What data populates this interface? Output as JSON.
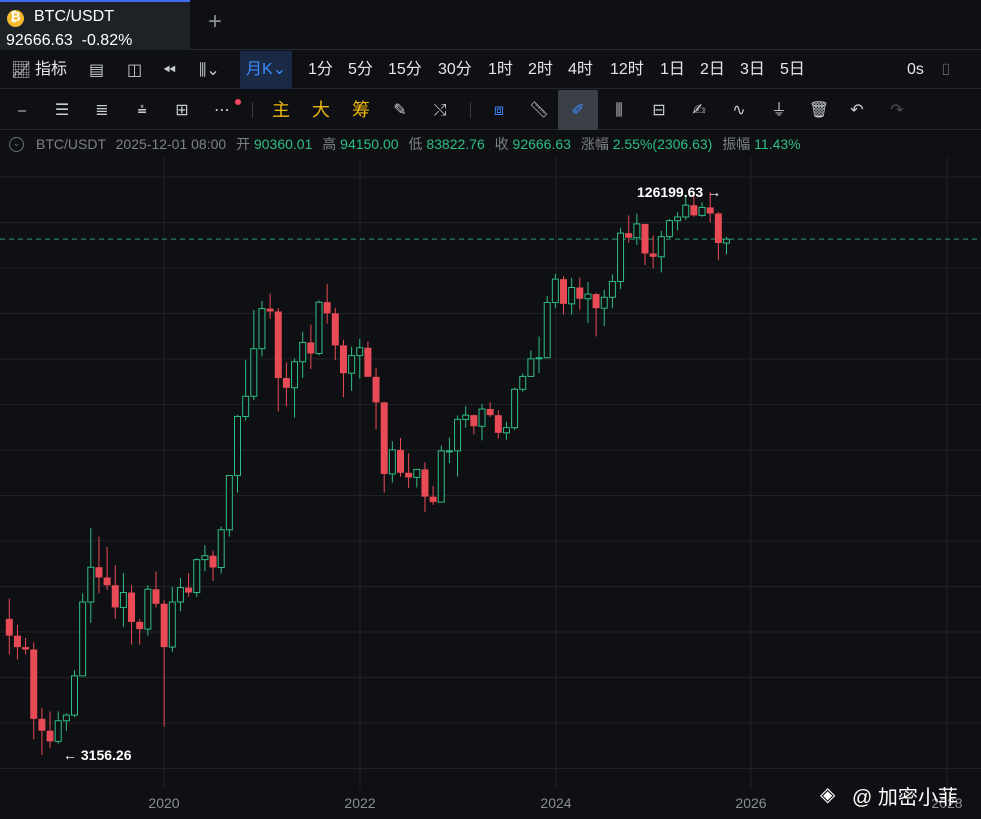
{
  "tab": {
    "symbol": "BTC/USDT",
    "price_line": "92666.63  -0.82%",
    "add_icon": "plus-icon"
  },
  "toolbar1": {
    "indicators_label": "指标",
    "period_selected": "月K",
    "periods": [
      "1分",
      "5分",
      "15分",
      "30分",
      "1时",
      "2时",
      "4时",
      "12时",
      "1日",
      "2日",
      "3日",
      "5日"
    ],
    "countdown": "0s"
  },
  "toolbar2": {
    "indicator_main": "主",
    "indicator_big": "大",
    "indicator_chip": "筹"
  },
  "info": {
    "symbol": "BTC/USDT",
    "datetime": "2025-12-01 08:00",
    "open_label": "开",
    "open": "90360.01",
    "high_label": "高",
    "high": "94150.00",
    "low_label": "低",
    "low": "83822.76",
    "close_label": "收",
    "close": "92666.63",
    "change_label": "涨幅",
    "change": "2.55%(2306.63)",
    "amplitude_label": "振幅",
    "amplitude": "11.43%"
  },
  "watermark": "@ 加密小菲",
  "colors": {
    "up": "#2ebd85",
    "down": "#e84b55",
    "accent": "#3e8bff",
    "background": "#0f1013",
    "grid": "#1f2227"
  },
  "chart_data": {
    "type": "candlestick",
    "title": "BTC/USDT",
    "interval": "monthly",
    "scale": "log",
    "x_ticks": [
      "2020",
      "2022",
      "2024",
      "2026",
      "2028"
    ],
    "annotations": [
      {
        "text": "126199.63 →",
        "at": "high"
      },
      {
        "text": "← 3156.26",
        "at": "low"
      }
    ],
    "current_price": 92666.63,
    "ohlc": [
      [
        7700,
        8800,
        6100,
        6900
      ],
      [
        6900,
        7400,
        5900,
        6400
      ],
      [
        6400,
        6800,
        6100,
        6300
      ],
      [
        6300,
        6600,
        3500,
        4000
      ],
      [
        4000,
        4300,
        3156,
        3700
      ],
      [
        3700,
        4200,
        3300,
        3450
      ],
      [
        3450,
        4200,
        3400,
        3950
      ],
      [
        3950,
        4150,
        3700,
        4100
      ],
      [
        4100,
        5500,
        4050,
        5300
      ],
      [
        5300,
        9100,
        5300,
        8600
      ],
      [
        8600,
        13970,
        7500,
        10800
      ],
      [
        10800,
        13200,
        9100,
        10100
      ],
      [
        10100,
        12330,
        9300,
        9600
      ],
      [
        9600,
        10950,
        7700,
        8300
      ],
      [
        8300,
        10400,
        7300,
        9150
      ],
      [
        9150,
        9600,
        6500,
        7550
      ],
      [
        7550,
        7700,
        6500,
        7200
      ],
      [
        7200,
        9600,
        6900,
        9350
      ],
      [
        9350,
        10500,
        8300,
        8500
      ],
      [
        8500,
        8700,
        3800,
        6400
      ],
      [
        6400,
        9500,
        6200,
        8600
      ],
      [
        8600,
        10070,
        8100,
        9450
      ],
      [
        9450,
        10400,
        8900,
        9150
      ],
      [
        9150,
        11450,
        8900,
        11350
      ],
      [
        11350,
        12480,
        10520,
        11650
      ],
      [
        11650,
        12050,
        9880,
        10780
      ],
      [
        10780,
        14100,
        10370,
        13800
      ],
      [
        13800,
        19480,
        13200,
        19700
      ],
      [
        19700,
        29300,
        17600,
        29000
      ],
      [
        29000,
        41900,
        28200,
        33100
      ],
      [
        33100,
        58300,
        32300,
        45200
      ],
      [
        45200,
        61800,
        43000,
        58800
      ],
      [
        58800,
        64850,
        55000,
        57700
      ],
      [
        57700,
        59000,
        30000,
        37300
      ],
      [
        37300,
        41300,
        31000,
        35000
      ],
      [
        35000,
        42400,
        28800,
        41500
      ],
      [
        41500,
        50500,
        37300,
        47100
      ],
      [
        47100,
        52900,
        39600,
        43800
      ],
      [
        43800,
        62000,
        43300,
        61300
      ],
      [
        61300,
        69000,
        53300,
        57000
      ],
      [
        57000,
        59100,
        42000,
        46200
      ],
      [
        46200,
        47900,
        32900,
        38500
      ],
      [
        38500,
        45800,
        34300,
        43200
      ],
      [
        43200,
        48200,
        37200,
        45500
      ],
      [
        45500,
        47400,
        37700,
        37600
      ],
      [
        37600,
        39900,
        26700,
        31800
      ],
      [
        31800,
        31950,
        17600,
        19900
      ],
      [
        19900,
        24650,
        18800,
        23300
      ],
      [
        23300,
        25200,
        19550,
        20050
      ],
      [
        20050,
        22800,
        18150,
        19450
      ],
      [
        19450,
        20500,
        18200,
        20500
      ],
      [
        20500,
        21480,
        15480,
        17150
      ],
      [
        17150,
        18400,
        16250,
        16550
      ],
      [
        16550,
        23950,
        16500,
        23150
      ],
      [
        23150,
        25250,
        21350,
        23150
      ],
      [
        23150,
        29200,
        19550,
        28450
      ],
      [
        28450,
        31000,
        26950,
        29250
      ],
      [
        29250,
        29350,
        25800,
        27200
      ],
      [
        27200,
        31450,
        24800,
        30450
      ],
      [
        30450,
        31800,
        28900,
        29250
      ],
      [
        29250,
        30200,
        25100,
        26050
      ],
      [
        26050,
        28000,
        24900,
        26950
      ],
      [
        26950,
        35000,
        26550,
        34650
      ],
      [
        34650,
        38450,
        34100,
        37700
      ],
      [
        37700,
        44700,
        37600,
        42300
      ],
      [
        42300,
        48950,
        38550,
        42600
      ],
      [
        42600,
        63900,
        42800,
        61200
      ],
      [
        61200,
        73800,
        59000,
        71300
      ],
      [
        71300,
        72800,
        56550,
        60650
      ],
      [
        60650,
        71950,
        56550,
        67500
      ],
      [
        67500,
        72000,
        58400,
        62700
      ],
      [
        62700,
        70000,
        53500,
        64650
      ],
      [
        64650,
        65100,
        49000,
        58950
      ],
      [
        58950,
        66500,
        52500,
        63300
      ],
      [
        63300,
        73600,
        58950,
        70200
      ],
      [
        70200,
        99800,
        66800,
        96400
      ],
      [
        96400,
        108300,
        90500,
        93500
      ],
      [
        93500,
        109600,
        89200,
        102400
      ],
      [
        102400,
        102500,
        78200,
        84350
      ],
      [
        84350,
        95000,
        76600,
        82550
      ],
      [
        82550,
        97900,
        74500,
        94200
      ],
      [
        94200,
        105800,
        93300,
        104600
      ],
      [
        104600,
        110600,
        98200,
        107150
      ],
      [
        107150,
        123200,
        105100,
        115750
      ],
      [
        115750,
        124500,
        107300,
        108250
      ],
      [
        108250,
        117900,
        107300,
        114050
      ],
      [
        114050,
        126199.63,
        103500,
        109600
      ],
      [
        109600,
        110600,
        80600,
        90360
      ],
      [
        90360,
        94150,
        83822.76,
        92666.63
      ]
    ]
  }
}
